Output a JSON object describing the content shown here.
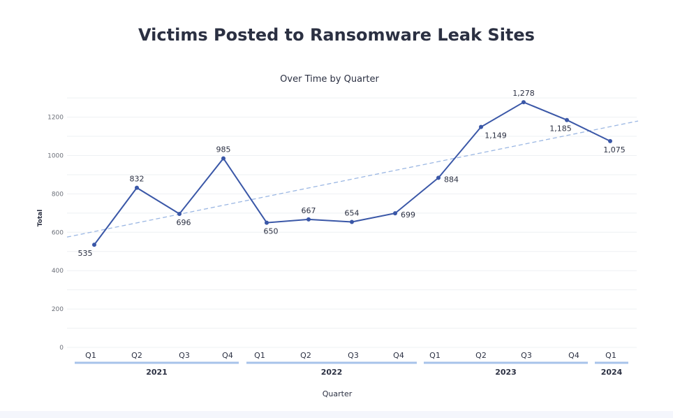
{
  "chart_data": {
    "type": "line",
    "title": "Victims Posted to Ransomware Leak Sites",
    "subtitle": "Over Time by Quarter",
    "xlabel": "Quarter",
    "ylabel": "Total",
    "ylim": [
      0,
      1300
    ],
    "yticks": [
      0,
      200,
      400,
      600,
      800,
      1000,
      1200
    ],
    "grid": true,
    "categories": [
      "Q1",
      "Q2",
      "Q3",
      "Q4",
      "Q1",
      "Q2",
      "Q3",
      "Q4",
      "Q1",
      "Q2",
      "Q3",
      "Q4",
      "Q1"
    ],
    "years": [
      {
        "label": "2021",
        "span": [
          0,
          3
        ]
      },
      {
        "label": "2022",
        "span": [
          4,
          7
        ]
      },
      {
        "label": "2023",
        "span": [
          8,
          11
        ]
      },
      {
        "label": "2024",
        "span": [
          12,
          12
        ]
      }
    ],
    "values": [
      535,
      832,
      696,
      985,
      650,
      667,
      654,
      699,
      884,
      1149,
      1278,
      1185,
      1075
    ],
    "value_labels": [
      "535",
      "832",
      "696",
      "985",
      "650",
      "667",
      "654",
      "699",
      "884",
      "1,149",
      "1,278",
      "1,185",
      "1,075"
    ],
    "label_pos": [
      "below",
      "above",
      "below",
      "above",
      "below",
      "above",
      "above",
      "right",
      "right",
      "below",
      "above",
      "below",
      "below"
    ],
    "trendline": {
      "style": "dashed",
      "start": 575,
      "end": 1180
    },
    "colors": {
      "line": "#3a57a7",
      "trend": "#9bb7e3",
      "year_bar": "#a7c3ea"
    }
  }
}
